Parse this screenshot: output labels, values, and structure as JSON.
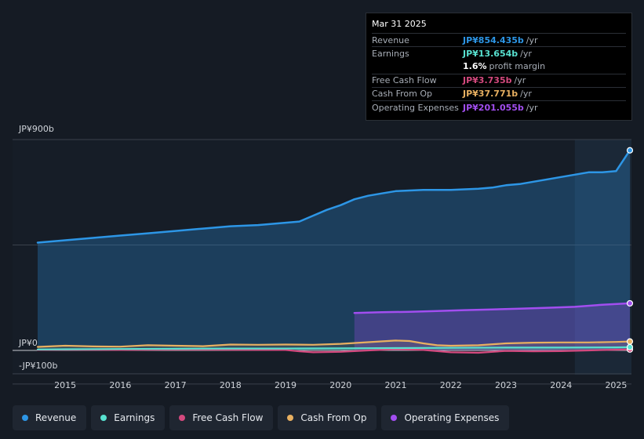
{
  "colors": {
    "revenue": "#2d96e6",
    "earnings": "#58e1d0",
    "fcf": "#d4497e",
    "cfo": "#e8b061",
    "opex": "#a24ef0"
  },
  "tooltip": {
    "date": "Mar 31 2025",
    "rows": [
      {
        "label": "Revenue",
        "value": "JP¥854.435b",
        "unit": "/yr",
        "color": "#2d96e6"
      },
      {
        "label": "Earnings",
        "value": "JP¥13.654b",
        "unit": "/yr",
        "color": "#58e1d0"
      },
      {
        "label": "",
        "value": "1.6%",
        "unit": "profit margin",
        "color": "#ffffff"
      },
      {
        "label": "Free Cash Flow",
        "value": "JP¥3.735b",
        "unit": "/yr",
        "color": "#d4497e"
      },
      {
        "label": "Cash From Op",
        "value": "JP¥37.771b",
        "unit": "/yr",
        "color": "#e8b061"
      },
      {
        "label": "Operating Expenses",
        "value": "JP¥201.055b",
        "unit": "/yr",
        "color": "#a24ef0"
      }
    ]
  },
  "legend": [
    {
      "label": "Revenue",
      "color": "#2d96e6"
    },
    {
      "label": "Earnings",
      "color": "#58e1d0"
    },
    {
      "label": "Free Cash Flow",
      "color": "#d4497e"
    },
    {
      "label": "Cash From Op",
      "color": "#e8b061"
    },
    {
      "label": "Operating Expenses",
      "color": "#a24ef0"
    }
  ],
  "chart_data": {
    "type": "area",
    "title": "",
    "ylim": [
      -100,
      900
    ],
    "y_labels": [
      "JP¥900b",
      "JP¥0",
      "-JP¥100b"
    ],
    "y_label_values": [
      900,
      0,
      -100
    ],
    "xlim": [
      2014.2,
      2025.25
    ],
    "x_ticks": [
      2015,
      2016,
      2017,
      2018,
      2019,
      2020,
      2021,
      2022,
      2023,
      2024,
      2025
    ],
    "highlight_start": 2024.25,
    "series": [
      {
        "name": "Revenue",
        "key": "revenue",
        "x": [
          2014.5,
          2015,
          2015.5,
          2016,
          2016.5,
          2017,
          2017.5,
          2018,
          2018.5,
          2019,
          2019.25,
          2019.5,
          2019.75,
          2020,
          2020.25,
          2020.5,
          2020.75,
          2021,
          2021.5,
          2022,
          2022.5,
          2022.75,
          2023,
          2023.25,
          2023.5,
          2023.75,
          2024,
          2024.25,
          2024.5,
          2024.75,
          2025,
          2025.25
        ],
        "y": [
          460,
          470,
          480,
          490,
          500,
          510,
          520,
          530,
          535,
          545,
          550,
          575,
          600,
          620,
          645,
          660,
          670,
          680,
          685,
          685,
          690,
          695,
          705,
          710,
          720,
          730,
          740,
          750,
          760,
          760,
          765,
          854
        ]
      },
      {
        "name": "Operating Expenses",
        "key": "opex",
        "x": [
          2020.25,
          2020.75,
          2021.25,
          2021.75,
          2022.25,
          2022.75,
          2023.25,
          2023.75,
          2024.25,
          2024.75,
          2025.25
        ],
        "y": [
          160,
          163,
          165,
          168,
          172,
          175,
          178,
          182,
          186,
          195,
          201
        ]
      },
      {
        "name": "Cash From Op",
        "key": "cfo",
        "x": [
          2014.5,
          2015,
          2015.5,
          2016,
          2016.5,
          2017,
          2017.5,
          2018,
          2018.5,
          2019,
          2019.5,
          2020,
          2020.5,
          2021,
          2021.25,
          2021.5,
          2021.75,
          2022,
          2022.5,
          2023,
          2023.5,
          2024,
          2024.5,
          2025,
          2025.25
        ],
        "y": [
          15,
          20,
          17,
          16,
          22,
          20,
          18,
          25,
          24,
          25,
          24,
          28,
          35,
          42,
          40,
          30,
          22,
          20,
          22,
          30,
          33,
          34,
          34,
          36,
          38
        ]
      },
      {
        "name": "Free Cash Flow",
        "key": "fcf",
        "x": [
          2014.5,
          2015,
          2016,
          2017,
          2018,
          2019,
          2019.25,
          2019.5,
          2020,
          2020.5,
          2021,
          2021.5,
          2022,
          2022.5,
          2023,
          2023.5,
          2024,
          2024.5,
          2025,
          2025.25
        ],
        "y": [
          2,
          3,
          2,
          4,
          3,
          2,
          -4,
          -8,
          -6,
          0,
          5,
          2,
          -8,
          -10,
          -2,
          -4,
          -3,
          0,
          3,
          4
        ]
      },
      {
        "name": "Earnings",
        "key": "earnings",
        "x": [
          2014.5,
          2015,
          2016,
          2017,
          2018,
          2019,
          2020,
          2021,
          2022,
          2023,
          2024,
          2025,
          2025.25
        ],
        "y": [
          4,
          5,
          6,
          7,
          8,
          8,
          9,
          10,
          11,
          12,
          12,
          13,
          14
        ]
      }
    ]
  }
}
